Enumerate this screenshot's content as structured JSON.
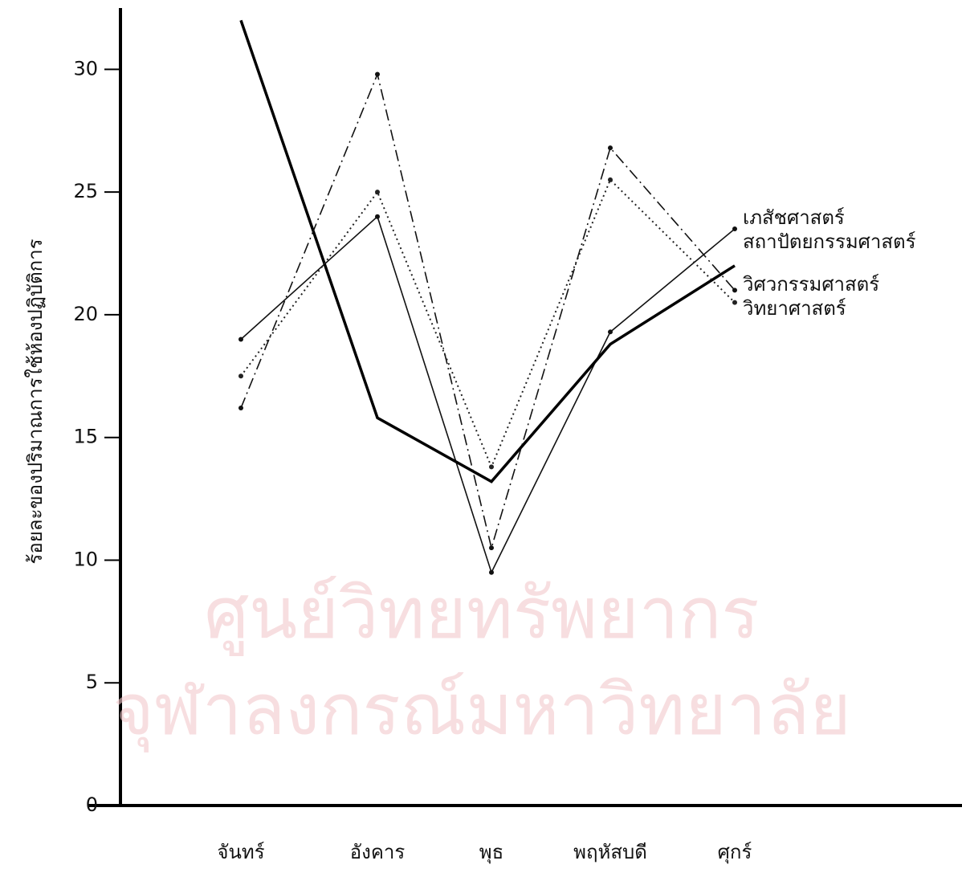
{
  "chart_data": {
    "type": "line",
    "y_label": "ร้อยละของปริมาณการใช้ห้องปฏิบัติการ",
    "categories": [
      "จันทร์",
      "อังคาร",
      "พุธ",
      "พฤหัสบดี",
      "ศุกร์"
    ],
    "series": [
      {
        "name": "เภสัชศาสตร์",
        "color": "#111111",
        "line_style": "solid",
        "values": [
          19,
          24,
          9.5,
          19.3,
          23.5
        ]
      },
      {
        "name": "สถาปัตยกรรมศาสตร์",
        "color": "#000000",
        "line_style": "bold",
        "values": [
          32,
          15.8,
          13.2,
          18.8,
          22
        ]
      },
      {
        "name": "วิศวกรรมศาสตร์",
        "color": "#111111",
        "line_style": "dashdot",
        "values": [
          16.2,
          29.8,
          10.5,
          26.8,
          21
        ]
      },
      {
        "name": "วิทยาศาสตร์",
        "color": "#222222",
        "line_style": "dotted",
        "values": [
          17.5,
          25,
          13.8,
          25.5,
          20.5
        ]
      }
    ],
    "ylim": [
      0,
      32.5
    ],
    "yticks": [
      0,
      5,
      10,
      15,
      20,
      25,
      30
    ],
    "annotations": [
      "ศูนย์วิทยทรัพยากร",
      "จุฬาลงกรณ์มหาวิทยาลัย"
    ]
  }
}
